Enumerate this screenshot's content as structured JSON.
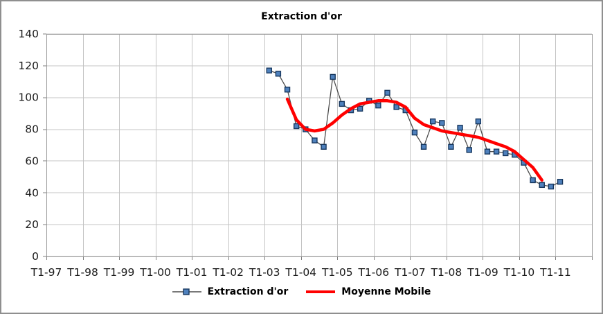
{
  "title": "Extraction d'or",
  "chart_data": {
    "type": "line",
    "title": "Extraction d'or",
    "x_axis": {
      "tick_labels": [
        "T1-97",
        "T1-98",
        "T1-99",
        "T1-00",
        "T1-01",
        "T1-02",
        "T1-03",
        "T1-04",
        "T1-05",
        "T1-06",
        "T1-07",
        "T1-08",
        "T1-09",
        "T1-10",
        "T1-11"
      ],
      "unit": "quarter",
      "quarters_per_year": 4,
      "total_quarter_slots": 60
    },
    "y_axis": {
      "ticks": [
        0,
        20,
        40,
        60,
        80,
        100,
        120,
        140
      ],
      "ylim": [
        0,
        140
      ]
    },
    "grid": true,
    "legend_position": "bottom",
    "colors": {
      "gridline": "#c4c4c4",
      "plot_border": "#999999",
      "axis": "#808080",
      "text": "#1a1a1a"
    },
    "series": [
      {
        "name": "Extraction d'or",
        "type": "line-markers",
        "line_color": "#4d4d4d",
        "marker_shape": "square",
        "marker_color": "#4f81bd",
        "marker_border": "#17375e",
        "start_label": "T1-03",
        "start_quarter_index": 24,
        "values": [
          117,
          115,
          105,
          82,
          80,
          73,
          69,
          113,
          96,
          92,
          93,
          98,
          95,
          103,
          94,
          92,
          78,
          69,
          85,
          84,
          69,
          81,
          67,
          85,
          66,
          66,
          65,
          64,
          59,
          48,
          45,
          44,
          47
        ]
      },
      {
        "name": "Moyenne Mobile",
        "type": "line",
        "line_color": "#ff0000",
        "line_width": 4.5,
        "start_label": "T3-03",
        "start_quarter_index": 26,
        "values": [
          99,
          86,
          80,
          79,
          80,
          84,
          89,
          93,
          96,
          97,
          98,
          98,
          97,
          94,
          87,
          83,
          81,
          79,
          78,
          77,
          76,
          75,
          73,
          71,
          69,
          66,
          61,
          56,
          48
        ]
      }
    ]
  }
}
